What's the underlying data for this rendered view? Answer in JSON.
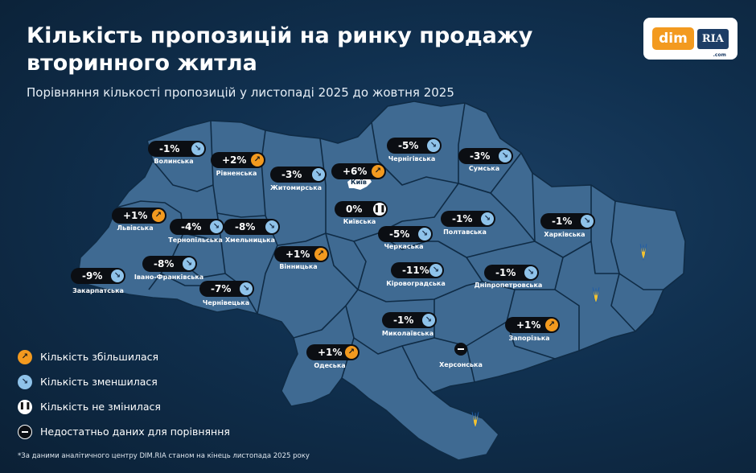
{
  "header": {
    "title": "Кількість пропозицій на ринку продажу вторинного житла",
    "subtitle": "Порівняння кількості пропозицій у листопаді 2025 до жовтня 2025"
  },
  "logo": {
    "part1": "dim",
    "part2": "RIA",
    "part3": ".com"
  },
  "colors": {
    "increase": "#f39a1f",
    "decrease": "#8fc3ea",
    "map_fill": "#3f6a92",
    "map_border": "#0f2b45",
    "badge": "#0b0e13"
  },
  "regions": [
    {
      "name": "Волинська",
      "change": "-1%",
      "trend": "down"
    },
    {
      "name": "Рівненська",
      "change": "+2%",
      "trend": "up"
    },
    {
      "name": "Житомирська",
      "change": "-3%",
      "trend": "down"
    },
    {
      "name": "Київ",
      "change": "+6%",
      "trend": "up"
    },
    {
      "name": "Чернігівська",
      "change": "-5%",
      "trend": "down"
    },
    {
      "name": "Сумська",
      "change": "-3%",
      "trend": "down"
    },
    {
      "name": "Львівська",
      "change": "+1%",
      "trend": "up"
    },
    {
      "name": "Тернопільська",
      "change": "-4%",
      "trend": "down"
    },
    {
      "name": "Хмельницька",
      "change": "-8%",
      "trend": "down"
    },
    {
      "name": "Київська",
      "change": "0%",
      "trend": "same"
    },
    {
      "name": "Полтавська",
      "change": "-1%",
      "trend": "down"
    },
    {
      "name": "Харківська",
      "change": "-1%",
      "trend": "down"
    },
    {
      "name": "Черкаська",
      "change": "-5%",
      "trend": "down"
    },
    {
      "name": "Вінницька",
      "change": "+1%",
      "trend": "up"
    },
    {
      "name": "Закарпатська",
      "change": "-9%",
      "trend": "down"
    },
    {
      "name": "Івано-Франківська",
      "change": "-8%",
      "trend": "down"
    },
    {
      "name": "Кіровоградська",
      "change": "-11%",
      "trend": "down"
    },
    {
      "name": "Дніпропетровська",
      "change": "-1%",
      "trend": "down"
    },
    {
      "name": "Чернівецька",
      "change": "-7%",
      "trend": "down"
    },
    {
      "name": "Миколаївська",
      "change": "-1%",
      "trend": "down"
    },
    {
      "name": "Запорізька",
      "change": "+1%",
      "trend": "up"
    },
    {
      "name": "Одеська",
      "change": "+1%",
      "trend": "up"
    },
    {
      "name": "Херсонська",
      "change": "",
      "trend": "na"
    }
  ],
  "legend": [
    {
      "label": "Кількість збільшилася",
      "trend": "up"
    },
    {
      "label": "Кількість зменшилася",
      "trend": "down"
    },
    {
      "label": "Кількість не змінилася",
      "trend": "same"
    },
    {
      "label": "Недостатньо даних для порівняння",
      "trend": "na"
    }
  ],
  "icons": {
    "up": "arrow-up-right-icon",
    "down": "arrow-down-right-icon",
    "same": "pause-icon",
    "na": "minus-icon"
  },
  "footnote": "*За даними аналітичного центру DIM.RIA станом на кінець листопада 2025 року"
}
